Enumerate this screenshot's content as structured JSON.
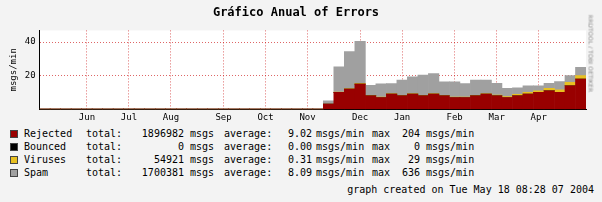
{
  "chart_data": {
    "type": "bar",
    "title": "Gráfico Anual of Errors",
    "y_label": "msgs/min",
    "annotations": [
      "RRDTOOL / TOBI OETIKER",
      "graph created on Tue May 18 08:28 07 2004"
    ],
    "stats_labels": {
      "total": "total:",
      "average": "average:",
      "max": "max"
    },
    "stats_units": {
      "total": "msgs",
      "average": "msgs/min",
      "max": "msgs/min"
    },
    "categories": [
      null,
      null,
      null,
      null,
      "Jun",
      null,
      null,
      null,
      "Jul",
      null,
      null,
      null,
      "Aug",
      null,
      null,
      null,
      null,
      "Sep",
      null,
      null,
      null,
      "Oct",
      null,
      null,
      null,
      "Nov",
      null,
      null,
      null,
      null,
      "Dec",
      null,
      null,
      null,
      "Jan",
      null,
      null,
      null,
      null,
      "Feb",
      null,
      null,
      null,
      "Mar",
      null,
      null,
      null,
      "Apr",
      null,
      null,
      null,
      null
    ],
    "stacked": true,
    "grid": true,
    "ylim": [
      0,
      47
    ],
    "yticks": [
      20,
      40
    ],
    "series": [
      {
        "name": "Rejected",
        "color": "#990000",
        "total": 1896982,
        "average": 9.02,
        "max": 204,
        "values": [
          0,
          0,
          0,
          0,
          0,
          0,
          0,
          0,
          0,
          0,
          0,
          0,
          0,
          0,
          0,
          0,
          0,
          0,
          0,
          0,
          0,
          0,
          0,
          0,
          0,
          0,
          0,
          3,
          10,
          12,
          15,
          8,
          7,
          9,
          8,
          9,
          8,
          9,
          8,
          7,
          7,
          8,
          9,
          8,
          7,
          8,
          9,
          10,
          11,
          10,
          14,
          18
        ]
      },
      {
        "name": "Bounced",
        "color": "#000000",
        "total": 0,
        "average": 0,
        "max": 0,
        "values": [
          0,
          0,
          0,
          0,
          0,
          0,
          0,
          0,
          0,
          0,
          0,
          0,
          0,
          0,
          0,
          0,
          0,
          0,
          0,
          0,
          0,
          0,
          0,
          0,
          0,
          0,
          0,
          0,
          0,
          0,
          0,
          0,
          0,
          0,
          0,
          0,
          0,
          0,
          0,
          0,
          0,
          0,
          0,
          0,
          0,
          0,
          0,
          0,
          0,
          0,
          0,
          0
        ]
      },
      {
        "name": "Viruses",
        "color": "#e8c020",
        "total": 54921,
        "average": 0.31,
        "max": 29,
        "values": [
          0,
          0,
          0,
          0,
          0,
          0,
          0,
          0,
          0,
          0,
          0,
          0,
          0,
          0,
          0,
          0,
          0,
          0,
          0,
          0,
          0,
          0,
          0,
          0,
          0,
          0,
          0,
          0,
          0.2,
          0.3,
          0.5,
          0.3,
          0.2,
          0.3,
          0.3,
          0.3,
          0.3,
          0.3,
          0.3,
          0.3,
          0.3,
          0.3,
          0.3,
          0.4,
          0.5,
          0.8,
          1,
          1,
          1.5,
          1.5,
          2,
          2
        ]
      },
      {
        "name": "Spam",
        "color": "#a0a0a0",
        "total": 1700381,
        "average": 8.09,
        "max": 636,
        "values": [
          0,
          0,
          0,
          0,
          0,
          0,
          0,
          0,
          0,
          0,
          0,
          0,
          0,
          0,
          0,
          0,
          0,
          0,
          0,
          0,
          0,
          0,
          0,
          0,
          0,
          0,
          0,
          2,
          15,
          22,
          25,
          6,
          8,
          6,
          9,
          10,
          12,
          12,
          8,
          9,
          8,
          9,
          8,
          7,
          5,
          4,
          4,
          3,
          3,
          5,
          4,
          5
        ]
      }
    ]
  }
}
